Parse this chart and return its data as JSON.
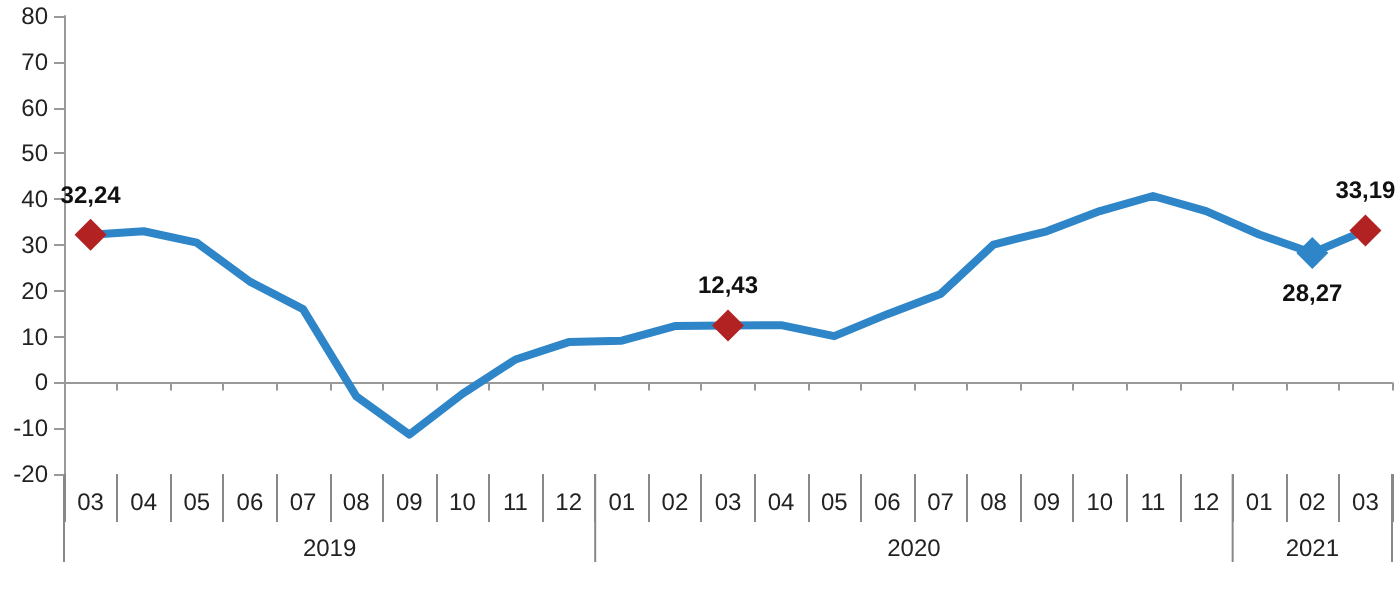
{
  "chart_data": {
    "type": "line",
    "categories": [
      "03",
      "04",
      "05",
      "06",
      "07",
      "08",
      "09",
      "10",
      "11",
      "12",
      "01",
      "02",
      "03",
      "04",
      "05",
      "06",
      "07",
      "08",
      "09",
      "10",
      "11",
      "12",
      "01",
      "02",
      "03"
    ],
    "series": [
      {
        "color": "#2e86c8",
        "marker": "none",
        "values": [
          32.24,
          33,
          30.5,
          22,
          16,
          -3,
          -11.4,
          -2.5,
          5,
          8.8,
          9.1,
          12.3,
          12.43,
          12.5,
          10.1,
          14.9,
          19.3,
          30.1,
          33,
          37.4,
          40.7,
          37.4,
          32.3,
          28.27,
          33.19
        ]
      },
      {
        "type": "scatter",
        "marker": "diamond",
        "colors": [
          "#b22222",
          null,
          null,
          null,
          null,
          null,
          null,
          null,
          null,
          null,
          null,
          null,
          "#b22222",
          null,
          null,
          null,
          null,
          null,
          null,
          null,
          null,
          null,
          null,
          "#2e86c8",
          "#b22222"
        ],
        "values": [
          32.24,
          null,
          null,
          null,
          null,
          null,
          null,
          null,
          null,
          null,
          null,
          null,
          12.43,
          null,
          null,
          null,
          null,
          null,
          null,
          null,
          null,
          null,
          null,
          28.27,
          33.19
        ],
        "value_labels": [
          "32,24",
          null,
          null,
          null,
          null,
          null,
          null,
          null,
          null,
          null,
          null,
          null,
          "12,43",
          null,
          null,
          null,
          null,
          null,
          null,
          null,
          null,
          null,
          null,
          "28,27",
          "33,19"
        ]
      }
    ],
    "annotations": [
      "2019",
      "2020",
      "2021"
    ],
    "ylim": [
      -20,
      80
    ],
    "yticks": [
      -20,
      -10,
      0,
      10,
      20,
      30,
      40,
      50,
      60,
      70,
      80
    ]
  }
}
